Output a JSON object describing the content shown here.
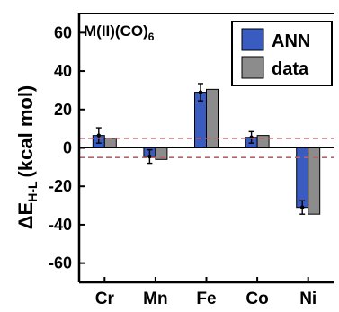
{
  "chart_data": {
    "type": "bar",
    "title": "M(II)(CO)",
    "title_subscript": "6",
    "ylabel_main": "ΔE",
    "ylabel_subscript": "H-L",
    "ylabel_unit": "(kcal mol)",
    "categories": [
      "Cr",
      "Mn",
      "Fe",
      "Co",
      "Ni"
    ],
    "series": [
      {
        "name": "ANN",
        "color": "#3a5bbf",
        "values": [
          6.5,
          -4.5,
          29.0,
          5.5,
          -31.0
        ],
        "errors": [
          4.0,
          3.5,
          4.5,
          3.0,
          3.5
        ]
      },
      {
        "name": "data",
        "color": "#8c8c8c",
        "values": [
          5.0,
          -6.0,
          30.5,
          6.5,
          -34.5
        ]
      }
    ],
    "ylim": [
      -70,
      70
    ],
    "yticks": [
      -60,
      -40,
      -20,
      0,
      20,
      40,
      60
    ],
    "ytick_labels": [
      "-60",
      "-40",
      "-20",
      "0",
      "20",
      "40",
      "60"
    ],
    "reference_lines": [
      5,
      -5
    ],
    "reference_line_color": "#b5646b",
    "legend_position": "top-right",
    "grid": false
  }
}
